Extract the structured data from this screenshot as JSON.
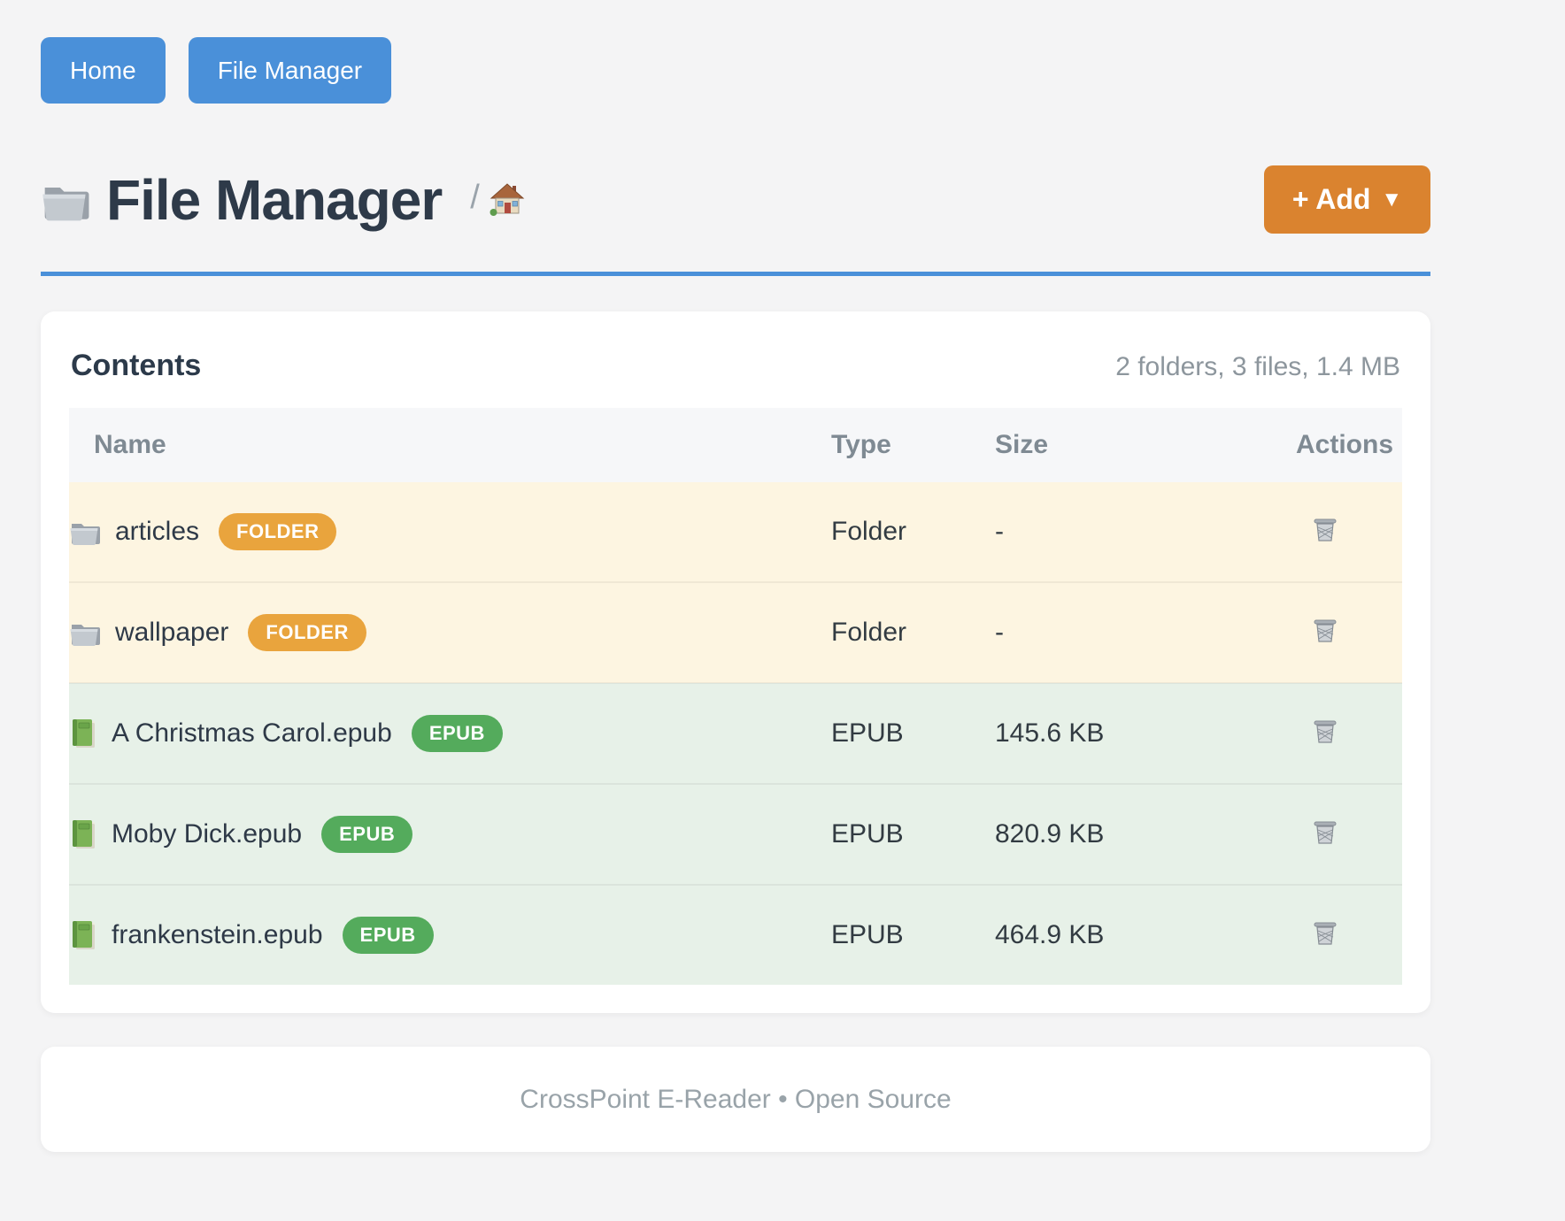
{
  "nav": {
    "home_label": "Home",
    "file_manager_label": "File Manager"
  },
  "header": {
    "title": "File Manager",
    "title_icon": "folder-icon",
    "breadcrumb_separator": "/",
    "breadcrumb_icon": "home-icon",
    "add_button_label": "+ Add",
    "add_button_caret": "▼"
  },
  "contents": {
    "heading": "Contents",
    "summary": "2 folders, 3 files, 1.4 MB",
    "columns": [
      "Name",
      "Type",
      "Size",
      "Actions"
    ],
    "row_action_icon": "trash-icon",
    "rows": [
      {
        "name": "articles",
        "badge": "FOLDER",
        "kind": "folder",
        "type": "Folder",
        "size": "-"
      },
      {
        "name": "wallpaper",
        "badge": "FOLDER",
        "kind": "folder",
        "type": "Folder",
        "size": "-"
      },
      {
        "name": "A Christmas Carol.epub",
        "badge": "EPUB",
        "kind": "epub",
        "type": "EPUB",
        "size": "145.6 KB"
      },
      {
        "name": "Moby Dick.epub",
        "badge": "EPUB",
        "kind": "epub",
        "type": "EPUB",
        "size": "820.9 KB"
      },
      {
        "name": "frankenstein.epub",
        "badge": "EPUB",
        "kind": "epub",
        "type": "EPUB",
        "size": "464.9 KB"
      }
    ]
  },
  "footer": {
    "text": "CrossPoint E-Reader • Open Source"
  },
  "colors": {
    "accent_blue": "#4a90d9",
    "accent_orange": "#da832f",
    "folder_badge": "#e9a43d",
    "epub_badge": "#54ab5c",
    "folder_row_bg": "#fdf5e1",
    "epub_row_bg": "#e7f1e8",
    "page_bg": "#f4f4f5",
    "heading_text": "#2e3a49",
    "muted_text": "#8d969d"
  }
}
